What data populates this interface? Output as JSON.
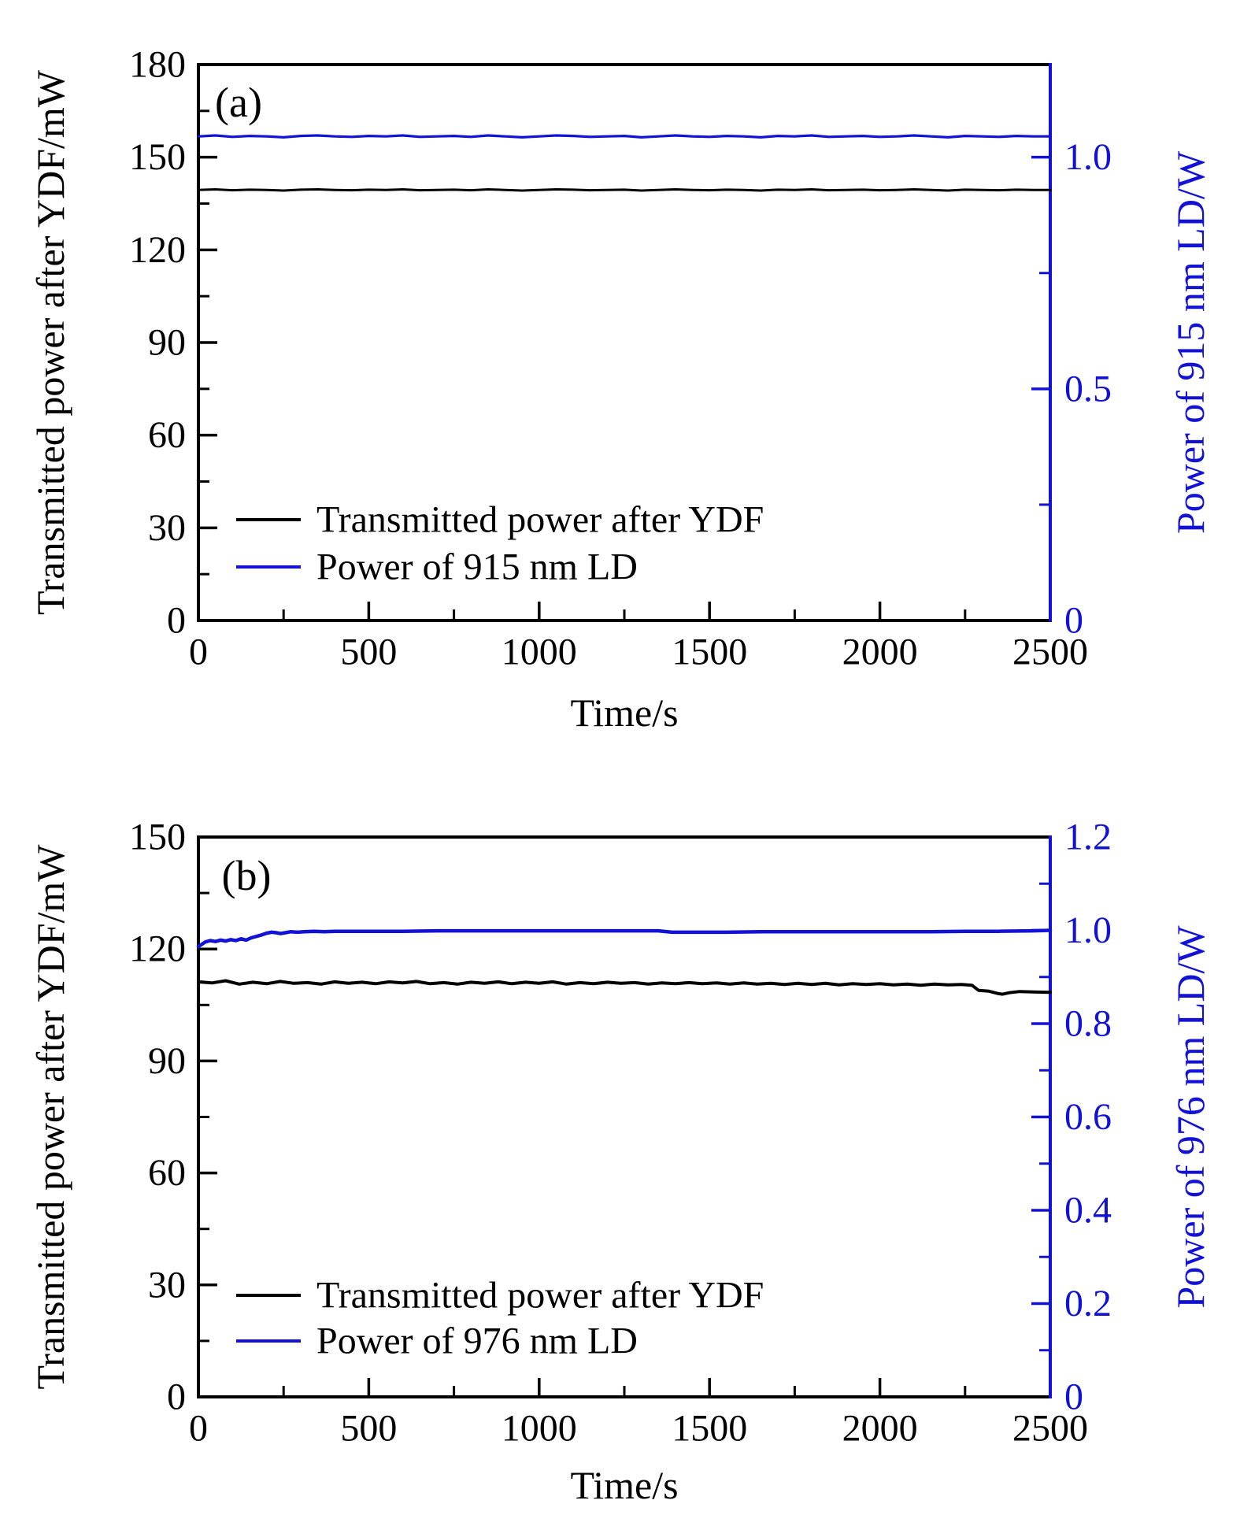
{
  "figure": {
    "background": "#ffffff",
    "black": "#000000",
    "accent_blue": "#1212d6"
  },
  "chart_data": [
    {
      "type": "line",
      "panel": "a",
      "panel_label": "(a)",
      "xlabel": "Time/s",
      "ylabel_left": "Transmitted power after YDF/mW",
      "ylabel_right": "Power of 915 nm LD/W",
      "xlim": [
        0,
        2500
      ],
      "ylim_left": [
        0,
        180
      ],
      "ylim_right": [
        0,
        1.2
      ],
      "grid": false,
      "legend_position": "lower-left-inside",
      "xticks": {
        "values": [
          0,
          500,
          1000,
          1500,
          2000,
          2500
        ],
        "labels": [
          "0",
          "500",
          "1000",
          "1500",
          "2000",
          "2500"
        ],
        "minor": [
          250,
          750,
          1250,
          1750,
          2250
        ]
      },
      "yticks_left": {
        "values": [
          0,
          30,
          60,
          90,
          120,
          150,
          180
        ],
        "labels": [
          "0",
          "30",
          "60",
          "90",
          "120",
          "150",
          "180"
        ],
        "minor": [
          15,
          45,
          75,
          105,
          135,
          165
        ]
      },
      "yticks_right": {
        "values": [
          0,
          0.5,
          1.0
        ],
        "labels": [
          "0",
          "0.5",
          "1.0"
        ],
        "minor": [
          0.25,
          0.75
        ]
      },
      "legend": [
        {
          "label": "Transmitted power after YDF",
          "color": "#000000"
        },
        {
          "label": "Power of 915 nm LD",
          "color": "#1212d6"
        }
      ],
      "series": [
        {
          "name": "Transmitted power after YDF",
          "axis": "left",
          "color": "#000000",
          "width": 3,
          "points": [
            [
              0,
              139.4
            ],
            [
              50,
              139.6
            ],
            [
              100,
              139.3
            ],
            [
              150,
              139.5
            ],
            [
              200,
              139.4
            ],
            [
              250,
              139.2
            ],
            [
              300,
              139.5
            ],
            [
              350,
              139.6
            ],
            [
              400,
              139.4
            ],
            [
              450,
              139.3
            ],
            [
              500,
              139.5
            ],
            [
              550,
              139.4
            ],
            [
              600,
              139.6
            ],
            [
              650,
              139.3
            ],
            [
              700,
              139.4
            ],
            [
              750,
              139.5
            ],
            [
              800,
              139.3
            ],
            [
              850,
              139.6
            ],
            [
              900,
              139.4
            ],
            [
              950,
              139.2
            ],
            [
              1000,
              139.4
            ],
            [
              1050,
              139.6
            ],
            [
              1100,
              139.5
            ],
            [
              1150,
              139.3
            ],
            [
              1200,
              139.4
            ],
            [
              1250,
              139.5
            ],
            [
              1300,
              139.2
            ],
            [
              1350,
              139.4
            ],
            [
              1400,
              139.6
            ],
            [
              1450,
              139.4
            ],
            [
              1500,
              139.3
            ],
            [
              1550,
              139.5
            ],
            [
              1600,
              139.4
            ],
            [
              1650,
              139.2
            ],
            [
              1700,
              139.5
            ],
            [
              1750,
              139.4
            ],
            [
              1800,
              139.6
            ],
            [
              1850,
              139.3
            ],
            [
              1900,
              139.4
            ],
            [
              1950,
              139.5
            ],
            [
              2000,
              139.3
            ],
            [
              2050,
              139.4
            ],
            [
              2100,
              139.6
            ],
            [
              2150,
              139.4
            ],
            [
              2200,
              139.2
            ],
            [
              2250,
              139.5
            ],
            [
              2300,
              139.4
            ],
            [
              2350,
              139.3
            ],
            [
              2400,
              139.5
            ],
            [
              2450,
              139.4
            ],
            [
              2500,
              139.4
            ]
          ]
        },
        {
          "name": "Power of 915 nm LD",
          "axis": "right",
          "color": "#1212d6",
          "width": 3.2,
          "points": [
            [
              0,
              1.045
            ],
            [
              50,
              1.047
            ],
            [
              100,
              1.044
            ],
            [
              150,
              1.046
            ],
            [
              200,
              1.045
            ],
            [
              250,
              1.043
            ],
            [
              300,
              1.046
            ],
            [
              350,
              1.047
            ],
            [
              400,
              1.045
            ],
            [
              450,
              1.044
            ],
            [
              500,
              1.046
            ],
            [
              550,
              1.045
            ],
            [
              600,
              1.047
            ],
            [
              650,
              1.044
            ],
            [
              700,
              1.045
            ],
            [
              750,
              1.046
            ],
            [
              800,
              1.044
            ],
            [
              850,
              1.047
            ],
            [
              900,
              1.045
            ],
            [
              950,
              1.043
            ],
            [
              1000,
              1.045
            ],
            [
              1050,
              1.047
            ],
            [
              1100,
              1.046
            ],
            [
              1150,
              1.044
            ],
            [
              1200,
              1.045
            ],
            [
              1250,
              1.046
            ],
            [
              1300,
              1.043
            ],
            [
              1350,
              1.045
            ],
            [
              1400,
              1.047
            ],
            [
              1450,
              1.045
            ],
            [
              1500,
              1.044
            ],
            [
              1550,
              1.046
            ],
            [
              1600,
              1.045
            ],
            [
              1650,
              1.043
            ],
            [
              1700,
              1.046
            ],
            [
              1750,
              1.045
            ],
            [
              1800,
              1.047
            ],
            [
              1850,
              1.044
            ],
            [
              1900,
              1.045
            ],
            [
              1950,
              1.046
            ],
            [
              2000,
              1.044
            ],
            [
              2050,
              1.045
            ],
            [
              2100,
              1.047
            ],
            [
              2150,
              1.045
            ],
            [
              2200,
              1.043
            ],
            [
              2250,
              1.046
            ],
            [
              2300,
              1.045
            ],
            [
              2350,
              1.044
            ],
            [
              2400,
              1.046
            ],
            [
              2450,
              1.045
            ],
            [
              2500,
              1.045
            ]
          ]
        }
      ]
    },
    {
      "type": "line",
      "panel": "b",
      "panel_label": "(b)",
      "xlabel": "Time/s",
      "ylabel_left": "Transmitted power after YDF/mW",
      "ylabel_right": "Power of 976 nm LD/W",
      "xlim": [
        0,
        2500
      ],
      "ylim_left": [
        0,
        150
      ],
      "ylim_right": [
        0,
        1.2
      ],
      "grid": false,
      "legend_position": "lower-left-inside",
      "xticks": {
        "values": [
          0,
          500,
          1000,
          1500,
          2000,
          2500
        ],
        "labels": [
          "0",
          "500",
          "1000",
          "1500",
          "2000",
          "2500"
        ],
        "minor": [
          250,
          750,
          1250,
          1750,
          2250
        ]
      },
      "yticks_left": {
        "values": [
          0,
          30,
          60,
          90,
          120,
          150
        ],
        "labels": [
          "0",
          "30",
          "60",
          "90",
          "120",
          "150"
        ],
        "minor": [
          15,
          45,
          75,
          105,
          135
        ]
      },
      "yticks_right": {
        "values": [
          0,
          0.2,
          0.4,
          0.6,
          0.8,
          1.0,
          1.2
        ],
        "labels": [
          "0",
          "0.2",
          "0.4",
          "0.6",
          "0.8",
          "1.0",
          "1.2"
        ],
        "minor": [
          0.1,
          0.3,
          0.5,
          0.7,
          0.9,
          1.1
        ]
      },
      "legend": [
        {
          "label": "Transmitted power after YDF",
          "color": "#000000"
        },
        {
          "label": "Power of 976 nm LD",
          "color": "#1212d6"
        }
      ],
      "series": [
        {
          "name": "Transmitted power after YDF",
          "axis": "left",
          "color": "#000000",
          "width": 4,
          "points": [
            [
              0,
              111.2
            ],
            [
              40,
              110.9
            ],
            [
              80,
              111.5
            ],
            [
              120,
              110.6
            ],
            [
              160,
              111.1
            ],
            [
              200,
              110.7
            ],
            [
              240,
              111.3
            ],
            [
              280,
              110.8
            ],
            [
              320,
              111.0
            ],
            [
              360,
              110.6
            ],
            [
              400,
              111.2
            ],
            [
              440,
              110.8
            ],
            [
              480,
              111.1
            ],
            [
              520,
              110.7
            ],
            [
              560,
              111.2
            ],
            [
              600,
              110.9
            ],
            [
              640,
              111.3
            ],
            [
              680,
              110.7
            ],
            [
              720,
              111.0
            ],
            [
              760,
              110.6
            ],
            [
              800,
              111.1
            ],
            [
              840,
              110.8
            ],
            [
              880,
              111.2
            ],
            [
              920,
              110.7
            ],
            [
              960,
              111.1
            ],
            [
              1000,
              110.8
            ],
            [
              1040,
              111.2
            ],
            [
              1080,
              110.6
            ],
            [
              1120,
              111.0
            ],
            [
              1160,
              110.7
            ],
            [
              1200,
              111.1
            ],
            [
              1240,
              110.8
            ],
            [
              1280,
              111.0
            ],
            [
              1320,
              110.6
            ],
            [
              1360,
              110.9
            ],
            [
              1400,
              110.7
            ],
            [
              1440,
              111.0
            ],
            [
              1480,
              110.7
            ],
            [
              1520,
              110.9
            ],
            [
              1560,
              110.6
            ],
            [
              1600,
              110.9
            ],
            [
              1640,
              110.6
            ],
            [
              1680,
              110.8
            ],
            [
              1720,
              110.5
            ],
            [
              1760,
              110.8
            ],
            [
              1800,
              110.5
            ],
            [
              1840,
              110.8
            ],
            [
              1880,
              110.4
            ],
            [
              1920,
              110.7
            ],
            [
              1960,
              110.5
            ],
            [
              2000,
              110.7
            ],
            [
              2040,
              110.4
            ],
            [
              2080,
              110.6
            ],
            [
              2120,
              110.3
            ],
            [
              2160,
              110.6
            ],
            [
              2200,
              110.4
            ],
            [
              2240,
              110.5
            ],
            [
              2270,
              110.3
            ],
            [
              2290,
              108.9
            ],
            [
              2320,
              108.7
            ],
            [
              2345,
              108.1
            ],
            [
              2360,
              107.9
            ],
            [
              2380,
              108.3
            ],
            [
              2410,
              108.6
            ],
            [
              2450,
              108.5
            ],
            [
              2500,
              108.4
            ]
          ]
        },
        {
          "name": "Power of 976 nm LD",
          "axis": "right",
          "color": "#1212d6",
          "width": 4.5,
          "points": [
            [
              0,
              0.965
            ],
            [
              20,
              0.975
            ],
            [
              35,
              0.978
            ],
            [
              50,
              0.976
            ],
            [
              65,
              0.979
            ],
            [
              80,
              0.977
            ],
            [
              95,
              0.98
            ],
            [
              110,
              0.978
            ],
            [
              125,
              0.982
            ],
            [
              140,
              0.979
            ],
            [
              155,
              0.984
            ],
            [
              170,
              0.987
            ],
            [
              185,
              0.99
            ],
            [
              200,
              0.994
            ],
            [
              215,
              0.996
            ],
            [
              228,
              0.995
            ],
            [
              242,
              0.993
            ],
            [
              255,
              0.995
            ],
            [
              270,
              0.997
            ],
            [
              290,
              0.996
            ],
            [
              310,
              0.997
            ],
            [
              340,
              0.998
            ],
            [
              370,
              0.997
            ],
            [
              400,
              0.998
            ],
            [
              450,
              0.998
            ],
            [
              500,
              0.998
            ],
            [
              600,
              0.998
            ],
            [
              700,
              0.999
            ],
            [
              800,
              0.999
            ],
            [
              900,
              0.999
            ],
            [
              1000,
              0.999
            ],
            [
              1100,
              0.999
            ],
            [
              1200,
              0.999
            ],
            [
              1300,
              0.999
            ],
            [
              1350,
              0.999
            ],
            [
              1390,
              0.996
            ],
            [
              1450,
              0.996
            ],
            [
              1550,
              0.996
            ],
            [
              1650,
              0.997
            ],
            [
              1750,
              0.997
            ],
            [
              1850,
              0.997
            ],
            [
              1950,
              0.997
            ],
            [
              2050,
              0.997
            ],
            [
              2150,
              0.997
            ],
            [
              2250,
              0.998
            ],
            [
              2350,
              0.998
            ],
            [
              2450,
              0.999
            ],
            [
              2500,
              1.0
            ]
          ]
        }
      ]
    }
  ]
}
